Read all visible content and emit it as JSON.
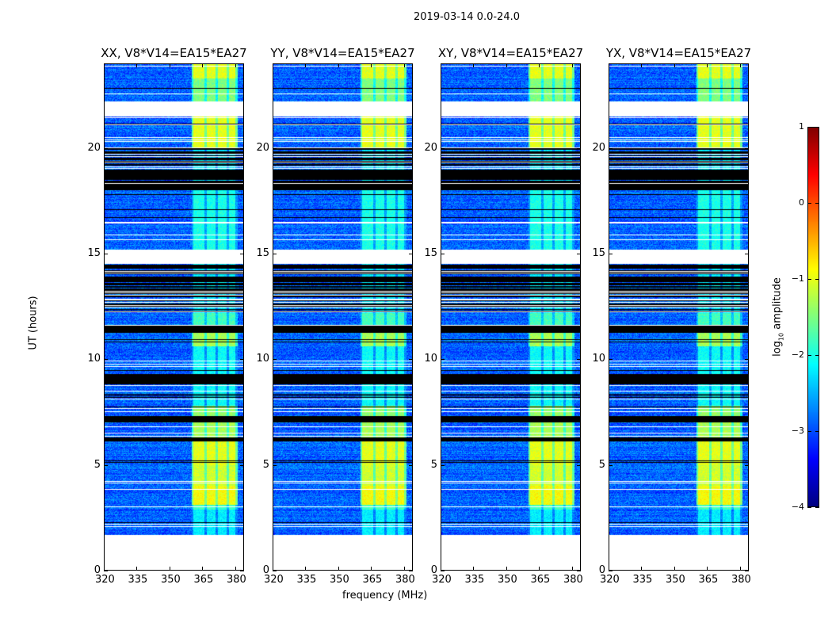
{
  "chart_data": {
    "type": "heatmap",
    "title": "2019-03-14 0.0-24.0",
    "xlabel": "frequency (MHz)",
    "ylabel": "UT (hours)",
    "xlim": [
      320,
      384
    ],
    "ylim": [
      0,
      24
    ],
    "xticks": [
      320,
      335,
      350,
      365,
      380
    ],
    "yticks": [
      0,
      5,
      10,
      15,
      20
    ],
    "panels": [
      {
        "title": "XX, V8*V14=EA15*EA27"
      },
      {
        "title": "YY, V8*V14=EA15*EA27"
      },
      {
        "title": "XY, V8*V14=EA15*EA27"
      },
      {
        "title": "YX, V8*V14=EA15*EA27"
      }
    ],
    "colorbar": {
      "label_prefix": "log",
      "label_sub": "10",
      "label_suffix": " amplitude",
      "colormap": "jet",
      "range": [
        -4,
        1
      ],
      "ticks": [
        "1",
        "0",
        "−1",
        "−2",
        "−3",
        "−4"
      ]
    },
    "background_log_amplitude": -2.9,
    "rfi_subbands_mhz": [
      [
        361,
        366
      ],
      [
        367,
        371
      ],
      [
        372,
        376
      ],
      [
        377,
        380
      ]
    ],
    "time_bands": [
      {
        "ut": [
          0,
          1.7
        ],
        "state": "blank"
      },
      {
        "ut": [
          1.7,
          2.9
        ],
        "state": "data",
        "rfi": -2.2
      },
      {
        "ut": [
          2.9,
          3.1
        ],
        "state": "data",
        "rfi": -1.8
      },
      {
        "ut": [
          3.1,
          4.0
        ],
        "state": "data",
        "rfi": -0.9
      },
      {
        "ut": [
          4.0,
          5.0
        ],
        "state": "data",
        "rfi": -1.1
      },
      {
        "ut": [
          5.0,
          6.1
        ],
        "state": "data",
        "rfi": -1.0
      },
      {
        "ut": [
          6.1,
          6.3
        ],
        "state": "flagged"
      },
      {
        "ut": [
          6.3,
          7.0
        ],
        "state": "data",
        "rfi": -1.3
      },
      {
        "ut": [
          7.0,
          7.3
        ],
        "state": "flagged"
      },
      {
        "ut": [
          7.3,
          7.8
        ],
        "state": "data",
        "rfi": -1.4
      },
      {
        "ut": [
          7.8,
          8.8
        ],
        "state": "data",
        "rfi": -2.1
      },
      {
        "ut": [
          8.8,
          9.3
        ],
        "state": "flagged"
      },
      {
        "ut": [
          9.3,
          10.6
        ],
        "state": "data",
        "rfi": -2.1
      },
      {
        "ut": [
          10.6,
          11.3
        ],
        "state": "data",
        "rfi": -1.3
      },
      {
        "ut": [
          11.3,
          11.6
        ],
        "state": "flagged"
      },
      {
        "ut": [
          11.6,
          12.2
        ],
        "state": "data",
        "rfi": -1.8
      },
      {
        "ut": [
          12.2,
          14.5
        ],
        "state": "sparse"
      },
      {
        "ut": [
          14.5,
          15.2
        ],
        "state": "blank"
      },
      {
        "ut": [
          15.2,
          18.0
        ],
        "state": "data",
        "rfi": -2.0
      },
      {
        "ut": [
          18.0,
          20.0
        ],
        "state": "sparse"
      },
      {
        "ut": [
          20.0,
          21.5
        ],
        "state": "data",
        "rfi": -1.0
      },
      {
        "ut": [
          21.5,
          22.2
        ],
        "state": "blank"
      },
      {
        "ut": [
          22.2,
          23.3
        ],
        "state": "data",
        "rfi": -1.5
      },
      {
        "ut": [
          23.3,
          24.0
        ],
        "state": "data",
        "rfi": -1.0
      }
    ]
  }
}
